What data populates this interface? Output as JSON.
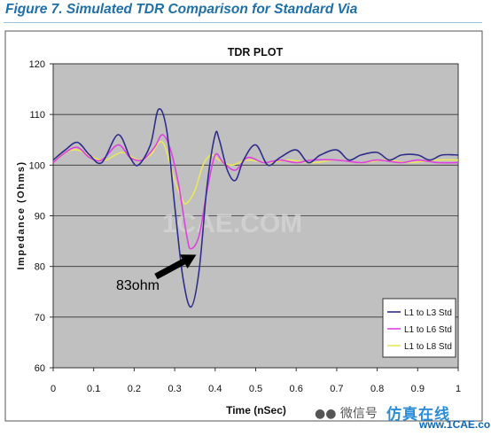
{
  "figure_title": "Figure 7. Simulated TDR Comparison for Standard Via",
  "watermark": "1CAE.COM",
  "footer": {
    "wechat_label": "微信号",
    "brand_text": "仿真在线",
    "site": "www.1CAE.com"
  },
  "colors": {
    "plot_bg": "#c0c0c0",
    "frame_bg": "#ffffff",
    "L3": "#2e2e8c",
    "L6": "#e040e0",
    "L8": "#e8e85a",
    "title": "#1f6fa8"
  },
  "chart_data": {
    "type": "line",
    "title": "TDR PLOT",
    "xlabel": "Time (nSec)",
    "ylabel": "Impedance (Ohms)",
    "xlim": [
      0,
      1
    ],
    "ylim": [
      60,
      120
    ],
    "xticks": [
      "0",
      "0.1",
      "0.2",
      "0.3",
      "0.4",
      "0.5",
      "0.6",
      "0.7",
      "0.8",
      "0.9",
      "1"
    ],
    "yticks": [
      "60",
      "70",
      "80",
      "90",
      "100",
      "110",
      "120"
    ],
    "grid": "horizontal",
    "legend_position": "bottom-right",
    "annotation": {
      "text": "83ohm",
      "target": [
        0.34,
        83
      ]
    },
    "series": [
      {
        "name": "L1 to L3 Std",
        "color": "#2e2e8c",
        "x": [
          0,
          0.03,
          0.06,
          0.09,
          0.12,
          0.16,
          0.19,
          0.21,
          0.24,
          0.26,
          0.28,
          0.3,
          0.32,
          0.34,
          0.36,
          0.38,
          0.4,
          0.41,
          0.43,
          0.45,
          0.47,
          0.5,
          0.53,
          0.56,
          0.6,
          0.63,
          0.66,
          0.7,
          0.73,
          0.76,
          0.8,
          0.83,
          0.86,
          0.9,
          0.93,
          0.96,
          1
        ],
        "y": [
          101,
          103,
          104.5,
          102,
          100.5,
          106,
          101.5,
          100,
          104,
          111,
          107,
          92,
          78,
          72,
          79,
          96,
          106,
          105,
          99,
          97,
          101,
          104,
          100,
          101.5,
          103,
          100.5,
          102,
          103,
          101,
          102,
          102.5,
          101,
          102,
          102,
          101,
          102,
          102
        ]
      },
      {
        "name": "L1 to L6 Std",
        "color": "#e040e0",
        "x": [
          0,
          0.03,
          0.06,
          0.09,
          0.12,
          0.16,
          0.19,
          0.22,
          0.25,
          0.27,
          0.29,
          0.31,
          0.33,
          0.34,
          0.36,
          0.38,
          0.4,
          0.42,
          0.45,
          0.48,
          0.52,
          0.56,
          0.6,
          0.64,
          0.7,
          0.76,
          0.8,
          0.86,
          0.9,
          0.95,
          1
        ],
        "y": [
          100.5,
          102.5,
          103.5,
          101.5,
          101,
          104,
          101.5,
          101,
          103.5,
          106,
          103,
          96,
          86,
          83.5,
          86,
          95,
          102,
          100.5,
          99,
          101.5,
          100.5,
          101,
          100.5,
          101,
          101,
          100.5,
          101,
          100.5,
          101,
          100.5,
          100.5
        ]
      },
      {
        "name": "L1 to L8 Std",
        "color": "#e8e85a",
        "x": [
          0,
          0.03,
          0.06,
          0.1,
          0.13,
          0.17,
          0.21,
          0.24,
          0.27,
          0.3,
          0.32,
          0.33,
          0.35,
          0.37,
          0.39,
          0.41,
          0.44,
          0.48,
          0.53,
          0.58,
          0.64,
          0.7,
          0.76,
          0.82,
          0.88,
          0.94,
          1
        ],
        "y": [
          101,
          102.5,
          103,
          101.5,
          101,
          102.5,
          101,
          102,
          104.5,
          97,
          93,
          92.5,
          95,
          100,
          102,
          101,
          100,
          101,
          100.5,
          101,
          100.5,
          101,
          100.5,
          101,
          100.5,
          101,
          101
        ]
      }
    ]
  }
}
